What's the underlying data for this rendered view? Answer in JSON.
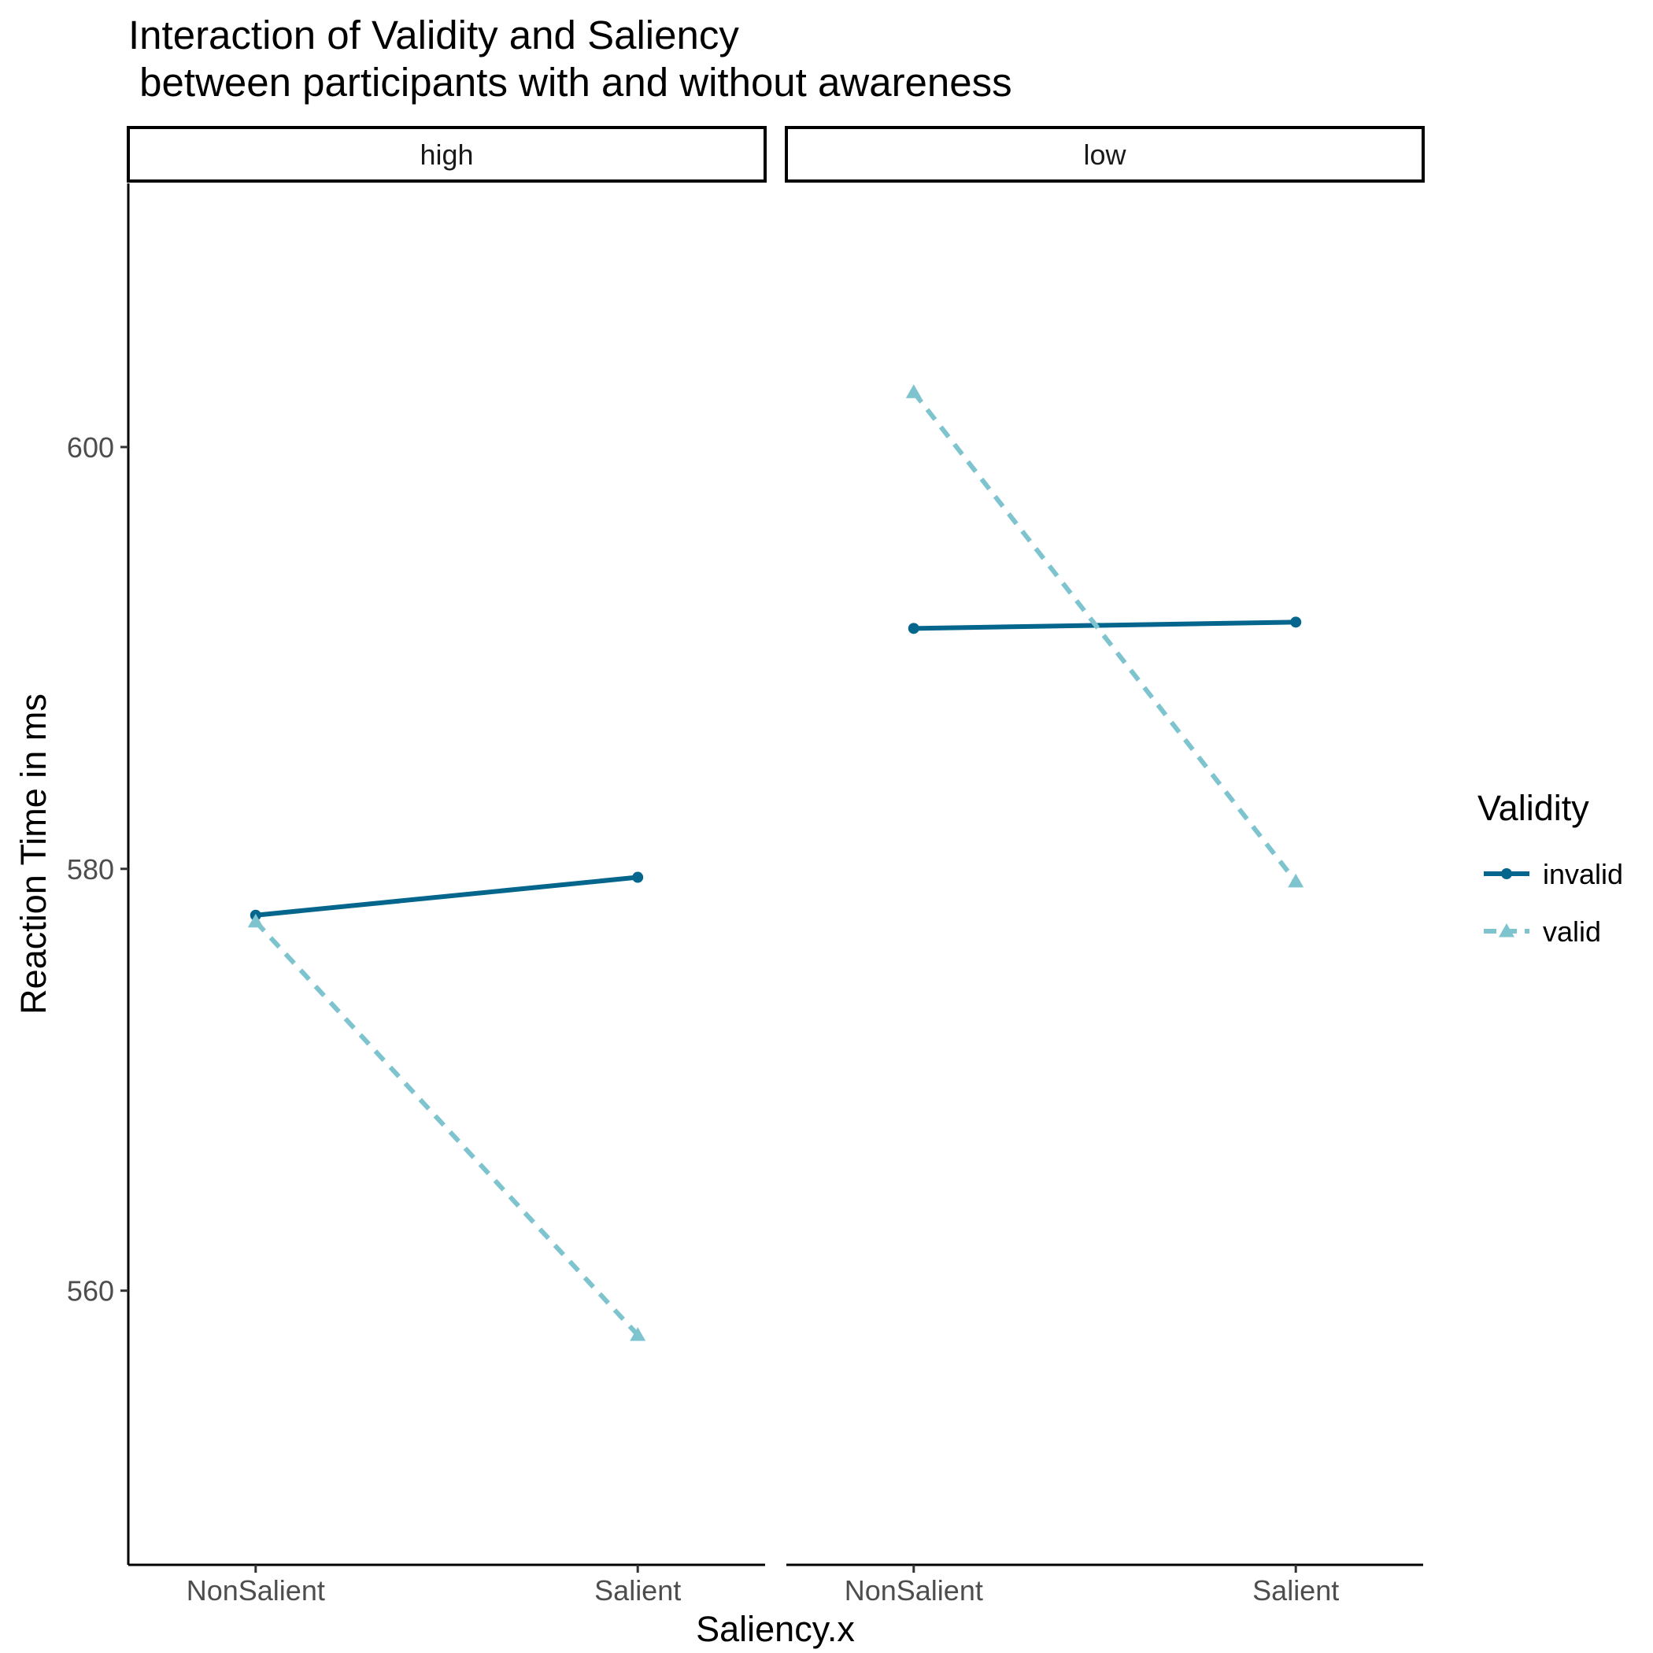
{
  "chart_data": {
    "type": "line",
    "title": "Interaction of Validity and Saliency",
    "subtitle": " between participants with and without awareness",
    "xlabel": "Saliency.x",
    "ylabel": "Reaction Time in ms",
    "categories": [
      "NonSalient",
      "Salient"
    ],
    "ylim": [
      547,
      612.5
    ],
    "yticks": [
      560,
      580,
      600
    ],
    "grid": false,
    "legend": {
      "title": "Validity",
      "placement": "right",
      "entries": [
        "invalid",
        "valid"
      ]
    },
    "panels": [
      {
        "label": "high",
        "series": [
          {
            "name": "invalid",
            "values": [
              577.8,
              579.6
            ]
          },
          {
            "name": "valid",
            "values": [
              577.5,
              557.9
            ]
          }
        ]
      },
      {
        "label": "low",
        "series": [
          {
            "name": "invalid",
            "values": [
              591.4,
              591.7
            ]
          },
          {
            "name": "valid",
            "values": [
              602.6,
              579.4
            ]
          }
        ]
      }
    ],
    "series_style": {
      "invalid": {
        "color": "#05668d",
        "dash": "solid",
        "marker": "circle"
      },
      "valid": {
        "color": "#7ec4cf",
        "dash": "dashed",
        "marker": "triangle"
      }
    }
  }
}
